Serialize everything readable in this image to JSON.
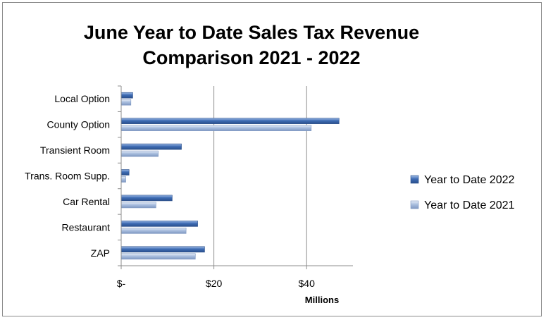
{
  "chart_data": {
    "type": "bar",
    "orientation": "horizontal",
    "title_lines": [
      "June Year to Date Sales Tax Revenue",
      "Comparison 2021 - 2022"
    ],
    "categories": [
      "Local Option",
      "County Option",
      "Transient Room",
      "Trans. Room Supp.",
      "Car Rental",
      "Restaurant",
      "ZAP"
    ],
    "series": [
      {
        "name": "Year to Date 2022",
        "color": "#4a78c0",
        "values": [
          2.5,
          47,
          13,
          1.7,
          11,
          16.5,
          18
        ]
      },
      {
        "name": "Year to Date 2021",
        "color": "#a9bddf",
        "values": [
          2.1,
          41,
          8,
          1.0,
          7.5,
          14,
          16
        ]
      }
    ],
    "x_ticks": [
      {
        "value": 0,
        "label": "$-"
      },
      {
        "value": 20,
        "label": "$20"
      },
      {
        "value": 40,
        "label": "$40"
      }
    ],
    "xlim": [
      0,
      50
    ],
    "x_unit_label": "Millions",
    "grid": true,
    "legend_position": "right"
  }
}
